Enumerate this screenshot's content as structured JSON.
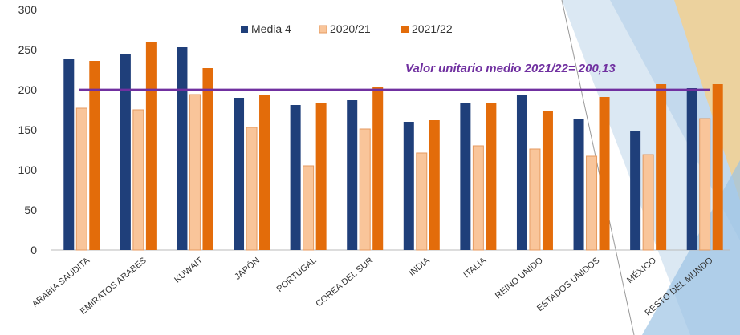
{
  "chart_data": {
    "type": "bar",
    "categories": [
      "ARABIA SAUDITA",
      "EMIRATOS ARABES",
      "KUWAIT",
      "JAPÓN",
      "PORTUGAL",
      "COREA DEL SUR",
      "INDIA",
      "ITALIA",
      "REINO UNIDO",
      "ESTADOS UNIDOS",
      "MÉXICO",
      "RESTO DEL MUNDO"
    ],
    "series": [
      {
        "name": "Media 4",
        "color": "#1f3f7a",
        "values": [
          239,
          245,
          253,
          190,
          181,
          187,
          160,
          184,
          194,
          164,
          149,
          202
        ]
      },
      {
        "name": "2020/21",
        "color": "#f9c59a",
        "values": [
          177,
          175,
          194,
          153,
          105,
          151,
          121,
          130,
          126,
          117,
          119,
          164
        ]
      },
      {
        "name": "2021/22",
        "color": "#e36c0a",
        "values": [
          236,
          259,
          227,
          193,
          184,
          204,
          162,
          184,
          174,
          191,
          207,
          207
        ]
      }
    ],
    "ylim": [
      0,
      300
    ],
    "yticks": [
      0,
      50,
      100,
      150,
      200,
      250,
      300
    ],
    "reference_line": {
      "value": 200.13,
      "label": "Valor unitario medio 2021/22= 200,13",
      "color": "#7030a0"
    },
    "legend": "top"
  }
}
